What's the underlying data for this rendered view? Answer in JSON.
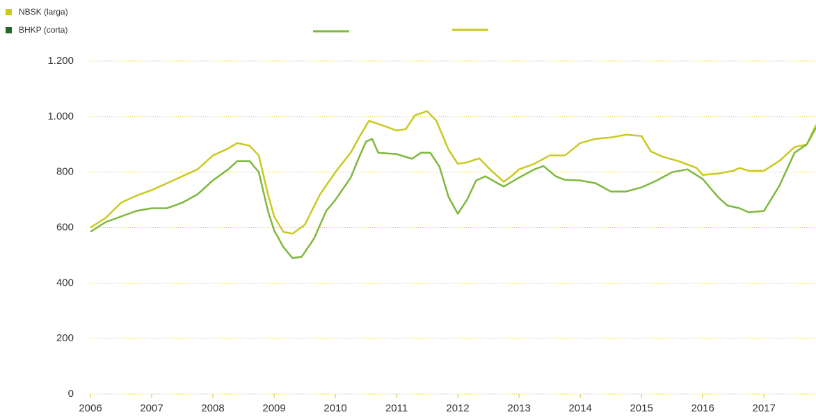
{
  "chart_data": {
    "type": "line",
    "series": [
      {
        "name": "NBSK (larga)",
        "color": "#c9c91e",
        "legend_color": "#c9c91e",
        "x": [
          2006.0,
          2006.25,
          2006.5,
          2006.75,
          2007.0,
          2007.25,
          2007.5,
          2007.75,
          2008.0,
          2008.25,
          2008.4,
          2008.6,
          2008.75,
          2008.9,
          2009.0,
          2009.15,
          2009.3,
          2009.5,
          2009.75,
          2010.0,
          2010.25,
          2010.4,
          2010.55,
          2010.75,
          2011.0,
          2011.15,
          2011.3,
          2011.5,
          2011.65,
          2011.85,
          2012.0,
          2012.15,
          2012.35,
          2012.55,
          2012.75,
          2012.9,
          2013.0,
          2013.25,
          2013.5,
          2013.75,
          2014.0,
          2014.25,
          2014.5,
          2014.75,
          2015.0,
          2015.15,
          2015.35,
          2015.6,
          2015.9,
          2016.0,
          2016.25,
          2016.5,
          2016.6,
          2016.75,
          2017.0,
          2017.25,
          2017.5,
          2017.7,
          2017.85
        ],
        "values": [
          600,
          635,
          690,
          715,
          735,
          760,
          785,
          810,
          860,
          885,
          905,
          895,
          860,
          720,
          640,
          585,
          578,
          610,
          720,
          800,
          870,
          930,
          985,
          970,
          950,
          955,
          1005,
          1020,
          985,
          880,
          830,
          835,
          850,
          805,
          765,
          790,
          810,
          830,
          860,
          860,
          905,
          920,
          925,
          935,
          930,
          875,
          855,
          840,
          815,
          790,
          795,
          805,
          815,
          805,
          805,
          840,
          890,
          900,
          970
        ]
      },
      {
        "name": "BHKP (corta)",
        "color": "#7db83c",
        "legend_color": "#1f6b2c",
        "x": [
          2006.0,
          2006.25,
          2006.5,
          2006.75,
          2007.0,
          2007.25,
          2007.5,
          2007.75,
          2008.0,
          2008.25,
          2008.4,
          2008.6,
          2008.75,
          2008.9,
          2009.0,
          2009.15,
          2009.3,
          2009.45,
          2009.65,
          2009.85,
          2010.0,
          2010.25,
          2010.4,
          2010.5,
          2010.6,
          2010.7,
          2011.0,
          2011.25,
          2011.4,
          2011.55,
          2011.7,
          2011.85,
          2012.0,
          2012.15,
          2012.3,
          2012.45,
          2012.65,
          2012.75,
          2013.0,
          2013.25,
          2013.4,
          2013.6,
          2013.75,
          2014.0,
          2014.25,
          2014.5,
          2014.75,
          2015.0,
          2015.25,
          2015.5,
          2015.75,
          2016.0,
          2016.25,
          2016.4,
          2016.6,
          2016.75,
          2017.0,
          2017.25,
          2017.5,
          2017.7,
          2017.85
        ],
        "values": [
          585,
          620,
          640,
          660,
          670,
          670,
          690,
          720,
          770,
          810,
          840,
          840,
          800,
          660,
          590,
          530,
          490,
          495,
          560,
          660,
          700,
          780,
          860,
          910,
          920,
          870,
          865,
          848,
          870,
          870,
          820,
          710,
          650,
          700,
          770,
          785,
          760,
          748,
          780,
          810,
          822,
          785,
          772,
          770,
          760,
          730,
          730,
          745,
          770,
          800,
          810,
          775,
          710,
          680,
          670,
          655,
          660,
          750,
          870,
          900,
          960
        ]
      }
    ],
    "xlim": [
      2006,
      2017.85
    ],
    "xticks": [
      2006,
      2007,
      2008,
      2009,
      2010,
      2011,
      2012,
      2013,
      2014,
      2015,
      2016,
      2017
    ],
    "ylim": [
      0,
      1200
    ],
    "yticks": [
      0,
      200,
      400,
      600,
      800,
      {
        "value": 1000,
        "label": "1.000"
      },
      {
        "value": 1200,
        "label": "1.200"
      }
    ],
    "grid": true,
    "grid_color": "#d9c81e"
  }
}
